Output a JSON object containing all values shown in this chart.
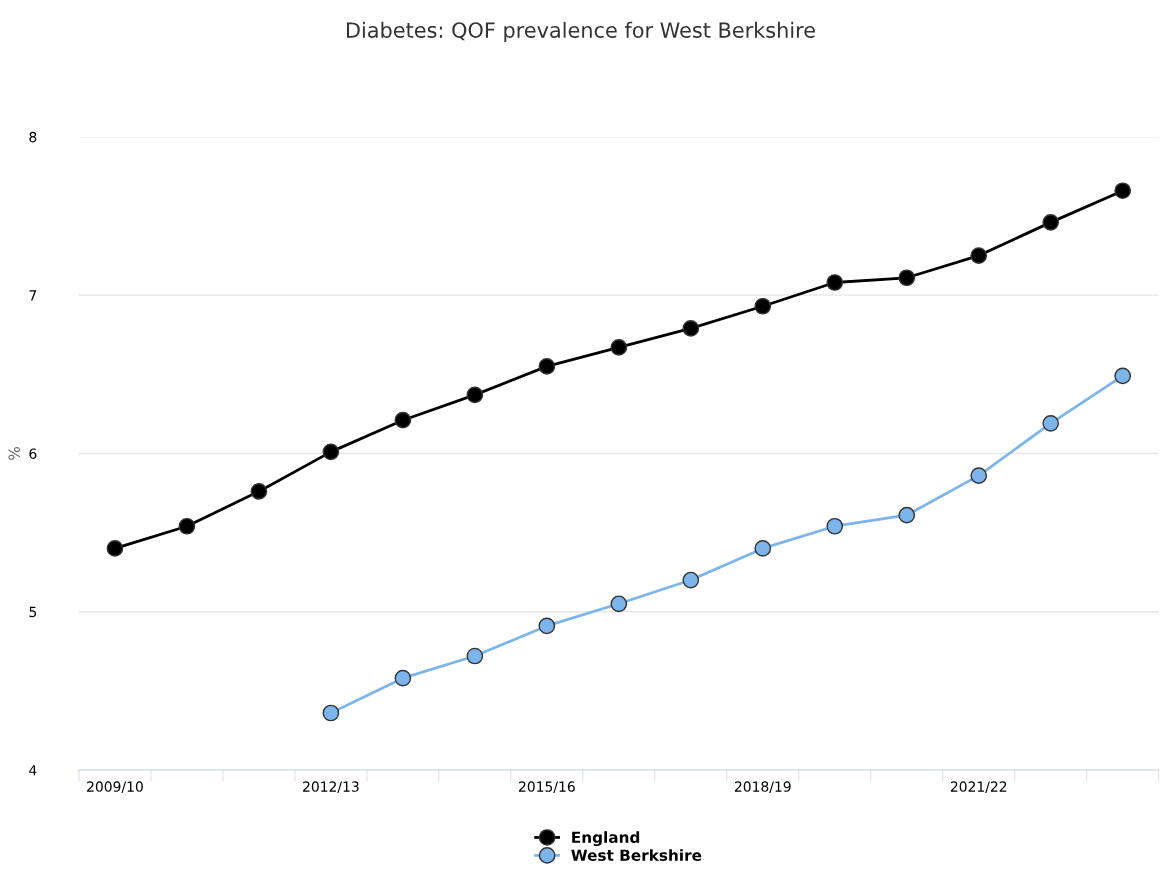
{
  "chart_data": {
    "type": "line",
    "title": "Diabetes: QOF prevalence for West Berkshire",
    "ylabel": "%",
    "categories": [
      "2009/10",
      null,
      null,
      "2012/13",
      null,
      null,
      "2015/16",
      null,
      null,
      "2018/19",
      null,
      null,
      "2021/22",
      null,
      null
    ],
    "series": [
      {
        "name": "England",
        "color": "#000000",
        "values": [
          5.4,
          5.54,
          5.76,
          6.01,
          6.21,
          6.37,
          6.55,
          6.67,
          6.79,
          6.93,
          7.08,
          7.11,
          7.25,
          7.46,
          7.66
        ]
      },
      {
        "name": "West Berkshire",
        "color": "#7cb5ec",
        "values": [
          null,
          null,
          null,
          4.36,
          4.58,
          4.72,
          4.91,
          5.05,
          5.2,
          5.4,
          5.54,
          5.61,
          5.86,
          6.19,
          6.49
        ]
      }
    ],
    "ylim": [
      4,
      8
    ],
    "yticks": [
      4,
      5,
      6,
      7,
      8
    ],
    "grid": "y",
    "legend": "bottom",
    "marker": "circle",
    "line_style": "solid"
  }
}
